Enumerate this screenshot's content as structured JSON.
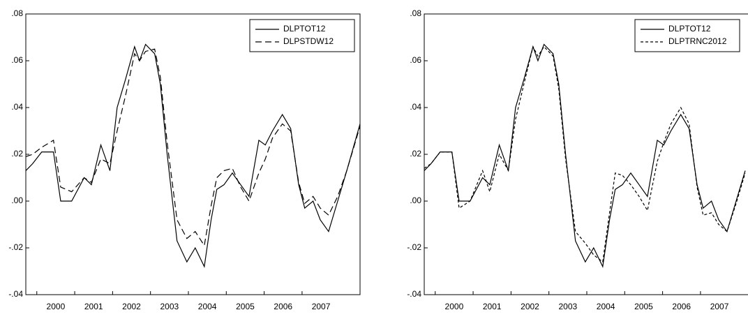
{
  "chart_data": [
    {
      "type": "line",
      "x": [
        1999.71,
        1999.89,
        2000.13,
        2000.44,
        2000.63,
        2000.92,
        2001.25,
        2001.44,
        2001.69,
        2001.93,
        2002.12,
        2002.34,
        2002.58,
        2002.71,
        2002.87,
        2003.11,
        2003.26,
        2003.44,
        2003.7,
        2003.96,
        2004.18,
        2004.42,
        2004.6,
        2004.75,
        2004.94,
        2005.16,
        2005.38,
        2005.6,
        2005.86,
        2006.03,
        2006.22,
        2006.48,
        2006.7,
        2006.91,
        2007.07,
        2007.29,
        2007.48,
        2007.7,
        2007.94,
        2008.18,
        2008.53
      ],
      "series": [
        {
          "name": "DLPTOT12",
          "color": "#000000",
          "dash": "none",
          "values": [
            0.013,
            0.016,
            0.021,
            0.021,
            0.0,
            0.0,
            0.01,
            0.007,
            0.024,
            0.013,
            0.04,
            0.052,
            0.066,
            0.06,
            0.067,
            0.063,
            0.05,
            0.02,
            -0.017,
            -0.026,
            -0.02,
            -0.028,
            -0.008,
            0.005,
            0.007,
            0.012,
            0.007,
            0.002,
            0.026,
            0.024,
            0.03,
            0.037,
            0.031,
            0.007,
            -0.003,
            0.0,
            -0.008,
            -0.013,
            0.0,
            0.013,
            0.033
          ]
        },
        {
          "name": "DLPSTDW12",
          "color": "#000000",
          "dash": "9,5",
          "values": [
            0.019,
            0.02,
            0.023,
            0.026,
            0.006,
            0.004,
            0.01,
            0.008,
            0.018,
            0.016,
            0.03,
            0.045,
            0.063,
            0.06,
            0.064,
            0.065,
            0.053,
            0.025,
            -0.008,
            -0.016,
            -0.013,
            -0.019,
            -0.002,
            0.01,
            0.013,
            0.014,
            0.006,
            0.0,
            0.012,
            0.018,
            0.027,
            0.033,
            0.03,
            0.008,
            -0.001,
            0.002,
            -0.003,
            -0.006,
            0.002,
            0.013,
            0.032
          ]
        }
      ],
      "xlim": [
        1999.71,
        2008.53
      ],
      "xticks": [
        {
          "value": 2000,
          "label": "2000"
        },
        {
          "value": 2001,
          "label": "2001"
        },
        {
          "value": 2002,
          "label": "2002"
        },
        {
          "value": 2003,
          "label": "2003"
        },
        {
          "value": 2004,
          "label": "2004"
        },
        {
          "value": 2005,
          "label": "2005"
        },
        {
          "value": 2006,
          "label": "2006"
        },
        {
          "value": 2007,
          "label": "2007"
        }
      ],
      "ylim": [
        -0.04,
        0.08
      ],
      "yticks": [
        {
          "value": -0.04,
          "label": "-.04"
        },
        {
          "value": -0.02,
          "label": "-.02"
        },
        {
          "value": 0,
          "label": ".00"
        },
        {
          "value": 0.02,
          "label": ".02"
        },
        {
          "value": 0.04,
          "label": ".04"
        },
        {
          "value": 0.06,
          "label": ".06"
        },
        {
          "value": 0.08,
          "label": ".08"
        }
      ],
      "legend": "top-right"
    },
    {
      "type": "line",
      "x": [
        1999.71,
        1999.89,
        2000.13,
        2000.44,
        2000.63,
        2000.92,
        2001.25,
        2001.44,
        2001.69,
        2001.93,
        2002.12,
        2002.34,
        2002.58,
        2002.71,
        2002.87,
        2003.11,
        2003.26,
        2003.44,
        2003.7,
        2003.96,
        2004.18,
        2004.42,
        2004.6,
        2004.75,
        2004.94,
        2005.16,
        2005.38,
        2005.6,
        2005.86,
        2006.03,
        2006.22,
        2006.48,
        2006.7,
        2006.91,
        2007.07,
        2007.29,
        2007.48,
        2007.7,
        2007.94,
        2008.18
      ],
      "series": [
        {
          "name": "DLPTOT12",
          "color": "#000000",
          "dash": "none",
          "values": [
            0.013,
            0.016,
            0.021,
            0.021,
            0.0,
            0.0,
            0.01,
            0.007,
            0.024,
            0.013,
            0.04,
            0.052,
            0.066,
            0.06,
            0.067,
            0.063,
            0.05,
            0.02,
            -0.017,
            -0.026,
            -0.02,
            -0.028,
            -0.008,
            0.005,
            0.007,
            0.012,
            0.007,
            0.002,
            0.026,
            0.024,
            0.03,
            0.037,
            0.031,
            0.007,
            -0.003,
            0.0,
            -0.008,
            -0.013,
            0.0,
            0.013
          ]
        },
        {
          "name": "DLPTRNC2012",
          "color": "#000000",
          "dash": "4,3",
          "values": [
            0.014,
            0.016,
            0.021,
            0.021,
            -0.003,
            0.0,
            0.013,
            0.004,
            0.02,
            0.013,
            0.035,
            0.05,
            0.066,
            0.062,
            0.066,
            0.062,
            0.048,
            0.018,
            -0.013,
            -0.018,
            -0.023,
            -0.026,
            -0.005,
            0.012,
            0.011,
            0.007,
            0.002,
            -0.004,
            0.017,
            0.025,
            0.033,
            0.04,
            0.033,
            0.006,
            -0.006,
            -0.005,
            -0.01,
            -0.013,
            -0.001,
            0.012
          ]
        }
      ],
      "xlim": [
        1999.71,
        2008.53
      ],
      "xticks": [
        {
          "value": 2000,
          "label": "2000"
        },
        {
          "value": 2001,
          "label": "2001"
        },
        {
          "value": 2002,
          "label": "2002"
        },
        {
          "value": 2003,
          "label": "2003"
        },
        {
          "value": 2004,
          "label": "2004"
        },
        {
          "value": 2005,
          "label": "2005"
        },
        {
          "value": 2006,
          "label": "2006"
        },
        {
          "value": 2007,
          "label": "2007"
        }
      ],
      "ylim": [
        -0.04,
        0.08
      ],
      "yticks": [
        {
          "value": -0.04,
          "label": "-.04"
        },
        {
          "value": -0.02,
          "label": "-.02"
        },
        {
          "value": 0,
          "label": ".00"
        },
        {
          "value": 0.02,
          "label": ".02"
        },
        {
          "value": 0.04,
          "label": ".04"
        },
        {
          "value": 0.06,
          "label": ".06"
        },
        {
          "value": 0.08,
          "label": ".08"
        }
      ],
      "legend": "top-right"
    }
  ]
}
